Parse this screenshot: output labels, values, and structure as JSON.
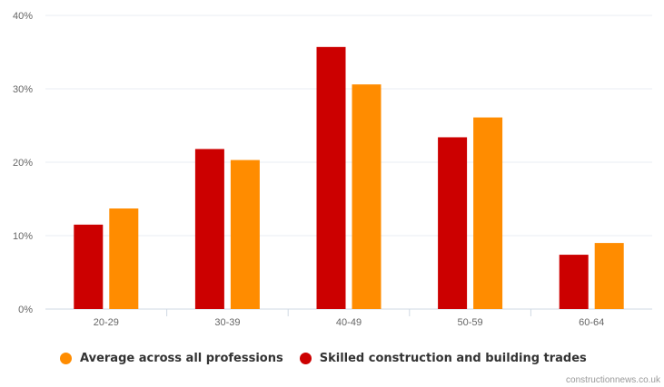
{
  "chart_data": {
    "type": "bar",
    "categories": [
      "20-29",
      "30-39",
      "40-49",
      "50-59",
      "60-64"
    ],
    "series": [
      {
        "name": "Skilled construction and building trades",
        "color": "#cc0000",
        "values": [
          11.5,
          21.8,
          35.7,
          23.4,
          7.4
        ]
      },
      {
        "name": "Average across all professions",
        "color": "#ff8c00",
        "values": [
          13.7,
          20.3,
          30.6,
          26.1,
          9.0
        ]
      }
    ],
    "yticks": [
      "0%",
      "10%",
      "20%",
      "30%",
      "40%"
    ],
    "ylim": [
      0,
      40
    ],
    "grid": true,
    "legend": [
      {
        "label": "Average across all professions",
        "color": "#ff8c00"
      },
      {
        "label": "Skilled construction and building trades",
        "color": "#cc0000"
      }
    ],
    "legend_position": "bottom"
  },
  "source": "constructionnews.co.uk"
}
